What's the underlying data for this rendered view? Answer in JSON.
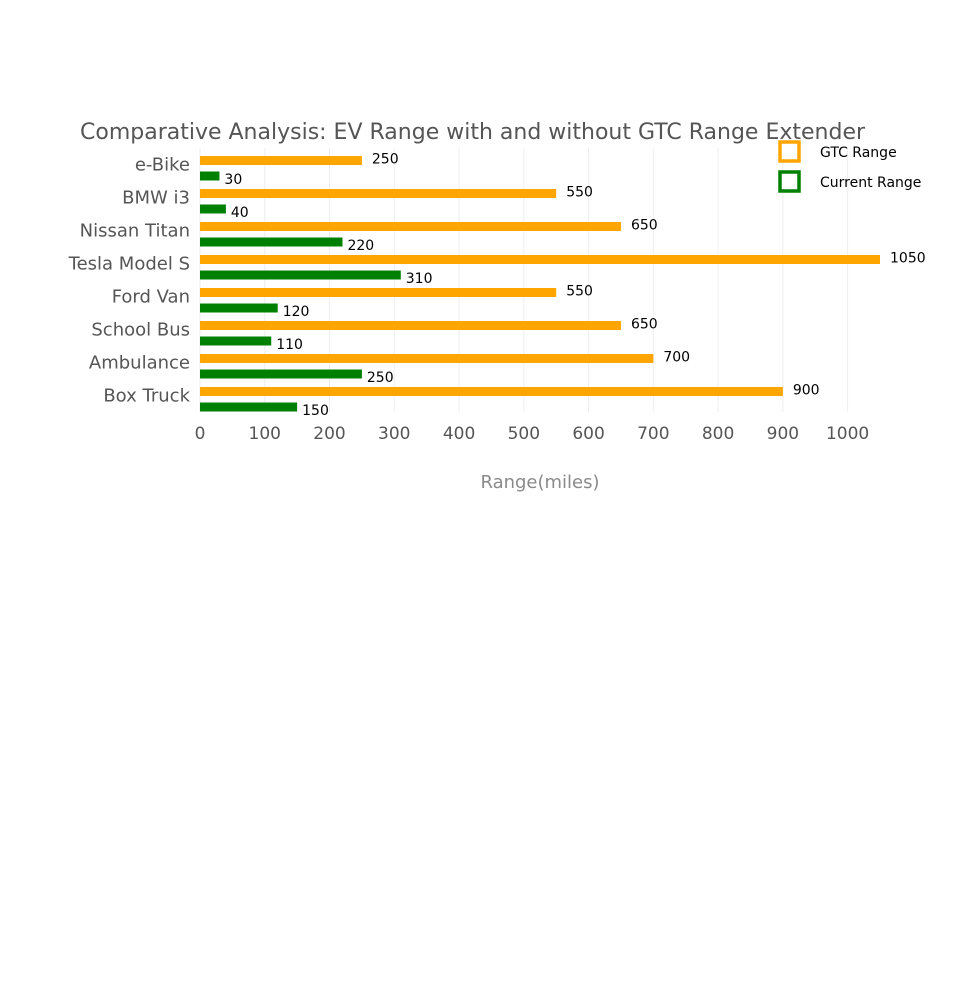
{
  "chart_data": {
    "type": "bar",
    "orientation": "horizontal",
    "title": "Comparative Analysis: EV Range with and without GTC Range Extender",
    "xlabel": "Range(miles)",
    "ylabel": "",
    "xlim": [
      0,
      1050
    ],
    "x_ticks": [
      0,
      100,
      200,
      300,
      400,
      500,
      600,
      700,
      800,
      900,
      1000
    ],
    "grid": true,
    "legend_position": "top-right",
    "categories": [
      "e-Bike",
      "BMW i3",
      "Nissan Titan",
      "Tesla Model S",
      "Ford Van",
      "School Bus",
      "Ambulance",
      "Box Truck"
    ],
    "series": [
      {
        "name": "GTC Range",
        "color": "#FFA500",
        "values": [
          250,
          550,
          650,
          1050,
          550,
          650,
          700,
          900
        ]
      },
      {
        "name": "Current Range",
        "color": "#008000",
        "values": [
          30,
          40,
          220,
          310,
          120,
          110,
          250,
          150
        ]
      }
    ]
  }
}
